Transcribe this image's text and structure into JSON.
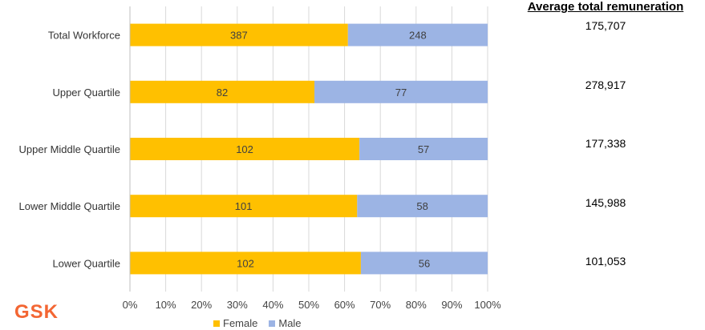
{
  "chart_data": {
    "type": "bar",
    "orientation": "horizontal",
    "stacked": "percent",
    "categories": [
      "Total Workforce",
      "Upper Quartile",
      "Upper Middle Quartile",
      "Lower Middle Quartile",
      "Lower Quartile"
    ],
    "series": [
      {
        "name": "Female",
        "color": "#ffc000",
        "values": [
          387,
          82,
          102,
          101,
          102
        ]
      },
      {
        "name": "Male",
        "color": "#9cb4e4",
        "values": [
          248,
          77,
          57,
          58,
          56
        ]
      }
    ],
    "x_ticks": [
      "0%",
      "10%",
      "20%",
      "30%",
      "40%",
      "50%",
      "60%",
      "70%",
      "80%",
      "90%",
      "100%"
    ],
    "xlim": [
      0,
      100
    ],
    "grid": true,
    "legend_position": "bottom"
  },
  "remuneration": {
    "title": "Average total remuneration",
    "values": [
      "175,707",
      "278,917",
      "177,338",
      "145,988",
      "101,053"
    ]
  },
  "logo": {
    "text": "GSK",
    "color": "#f36633"
  }
}
